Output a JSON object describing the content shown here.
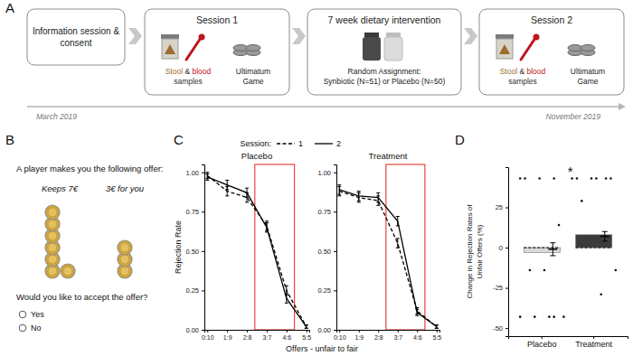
{
  "panel_labels": [
    "A",
    "B",
    "C",
    "D"
  ],
  "panel_a": {
    "steps": [
      {
        "title": "Information session & consent"
      },
      {
        "title": "Session 1",
        "samples": [
          [
            {
              "text": "Stool",
              "color": "#9c6b30"
            },
            {
              "text": " & ",
              "color": "#333333"
            },
            {
              "text": "blood",
              "color": "#c0141c"
            }
          ],
          [
            {
              "text": "samples",
              "color": "#333333"
            }
          ]
        ],
        "game": "Ultimatum Game"
      },
      {
        "title": "7 week dietary intervention",
        "lines": [
          "Random Assignment:",
          "Synbiotic (N=51) or Placebo (N=50)"
        ]
      },
      {
        "title": "Session 2",
        "samples": [
          [
            {
              "text": "Stool",
              "color": "#9c6b30"
            },
            {
              "text": " & ",
              "color": "#333333"
            },
            {
              "text": "blood",
              "color": "#c0141c"
            }
          ],
          [
            {
              "text": "samples",
              "color": "#333333"
            }
          ]
        ],
        "game": "Ultimatum Game"
      }
    ],
    "timeline": [
      "March 2019",
      "November 2019"
    ]
  },
  "panel_b": {
    "prompt": "A player makes you the following offer:",
    "keeps": "Keeps 7€",
    "offer": "3€ for you",
    "keeps_coins": 7,
    "offer_coins": 3,
    "question": "Would you like to accept the offer?",
    "options": [
      "Yes",
      "No"
    ]
  },
  "panel_c": {
    "legend_title": "Session:",
    "x_label": "Offers - unfair to fair",
    "y_label": "Rejection Rate",
    "highlight": {
      "from": "3:7",
      "to": "4:6",
      "color": "#e8473c"
    }
  },
  "chart_data": [
    {
      "type": "line",
      "title": "Placebo",
      "categories": [
        "0:10",
        "1:9",
        "2:8",
        "3:7",
        "4:6",
        "5:5"
      ],
      "series": [
        {
          "name": "1",
          "color": "#000000",
          "line_style": "dashed",
          "values": [
            0.98,
            0.88,
            0.84,
            0.66,
            0.25,
            0.02
          ],
          "errors": [
            0.02,
            0.03,
            0.03,
            0.03,
            0.03,
            0.01
          ]
        },
        {
          "name": "2",
          "color": "#000000",
          "line_style": "solid",
          "values": [
            0.97,
            0.92,
            0.87,
            0.65,
            0.2,
            0.02
          ],
          "errors": [
            0.02,
            0.03,
            0.03,
            0.03,
            0.03,
            0.01
          ]
        }
      ],
      "ylim": [
        0,
        1.05
      ],
      "yticks": [
        {
          "value": 0,
          "label": "0.00"
        },
        {
          "value": 0.25,
          "label": "0.25"
        },
        {
          "value": 0.5,
          "label": "0.50"
        },
        {
          "value": 0.75,
          "label": "0.75"
        },
        {
          "value": 1,
          "label": "1.00"
        }
      ]
    },
    {
      "type": "line",
      "title": "Treatment",
      "categories": [
        "0:10",
        "1:9",
        "2:8",
        "3:7",
        "4:6",
        "5:5"
      ],
      "series": [
        {
          "name": "1",
          "color": "#000000",
          "line_style": "dashed",
          "values": [
            0.88,
            0.84,
            0.82,
            0.55,
            0.12,
            0.02
          ],
          "errors": [
            0.03,
            0.03,
            0.03,
            0.03,
            0.02,
            0.01
          ]
        },
        {
          "name": "2",
          "color": "#000000",
          "line_style": "solid",
          "values": [
            0.89,
            0.85,
            0.84,
            0.69,
            0.11,
            0.02
          ],
          "errors": [
            0.03,
            0.03,
            0.03,
            0.03,
            0.02,
            0.01
          ]
        }
      ],
      "ylim": [
        0,
        1.05
      ],
      "yticks": [
        {
          "value": 0,
          "label": "0.00"
        },
        {
          "value": 0.25,
          "label": "0.25"
        },
        {
          "value": 0.5,
          "label": "0.50"
        },
        {
          "value": 0.75,
          "label": "0.75"
        },
        {
          "value": 1,
          "label": "1.00"
        }
      ]
    },
    {
      "type": "box",
      "y_label": [
        "Change in Rejection Rates of",
        "Unfair Offers (%)"
      ],
      "categories": [
        "Placebo",
        "Treatment"
      ],
      "colors": [
        "#d9d9d9",
        "#3b3b3b"
      ],
      "boxes": [
        {
          "q1": -3,
          "median": 0,
          "q3": 0,
          "whisker_low": -3,
          "whisker_high": 0,
          "mean": -1,
          "error": 4,
          "points": [
            43,
            43,
            43,
            43,
            14,
            -14,
            -14,
            -43,
            -43,
            -43,
            -43,
            -43
          ]
        },
        {
          "q1": 0,
          "median": 0,
          "q3": 8,
          "whisker_low": 0,
          "whisker_high": 8,
          "mean": 7,
          "error": 3,
          "points": [
            43,
            43,
            43,
            43,
            43,
            43,
            29,
            -14,
            -29
          ]
        }
      ],
      "annotations": [
        {
          "text": "*",
          "category": "Treatment"
        }
      ],
      "ylim": [
        -55,
        50
      ],
      "yticks": [
        -50,
        -25,
        0,
        25
      ]
    }
  ]
}
